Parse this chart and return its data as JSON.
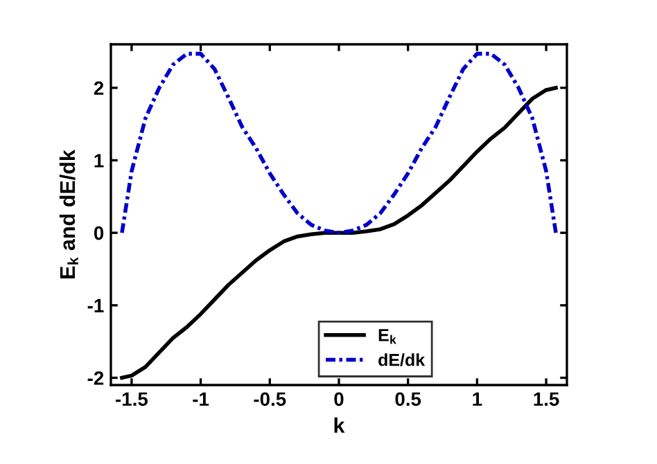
{
  "chart_data": {
    "type": "line",
    "xlabel": "k",
    "ylabel": "E$_{k}$ and dE/dk",
    "xlim": [
      -1.65,
      1.65
    ],
    "ylim": [
      -2.1,
      2.6
    ],
    "xticks": [
      -1.5,
      -1,
      -0.5,
      0,
      0.5,
      1,
      1.5
    ],
    "yticks": [
      -2,
      -1,
      0,
      1,
      2
    ],
    "grid": false,
    "legend": "bottom",
    "marker": "none",
    "x": [
      -1.57,
      -1.5,
      -1.4,
      -1.3,
      -1.2,
      -1.1,
      -1.0,
      -0.9,
      -0.8,
      -0.7,
      -0.6,
      -0.5,
      -0.4,
      -0.3,
      -0.2,
      -0.1,
      0,
      0.1,
      0.2,
      0.3,
      0.4,
      0.5,
      0.6,
      0.7,
      0.8,
      0.9,
      1.0,
      1.1,
      1.2,
      1.3,
      1.4,
      1.5,
      1.57
    ],
    "series": [
      {
        "name": "E$_{k}$",
        "color": "#000000",
        "line_style": "solid",
        "values": [
          -2,
          -1.97,
          -1.85,
          -1.65,
          -1.45,
          -1.3,
          -1.12,
          -0.92,
          -0.72,
          -0.55,
          -0.38,
          -0.24,
          -0.12,
          -0.05,
          -0.02,
          0,
          0,
          0,
          0.02,
          0.05,
          0.12,
          0.24,
          0.38,
          0.55,
          0.72,
          0.92,
          1.12,
          1.3,
          1.45,
          1.65,
          1.85,
          1.97,
          2
        ]
      },
      {
        "name": "dE/dk",
        "color": "#0000cc",
        "line_style": "dashdot",
        "values": [
          0,
          0.85,
          1.58,
          2.0,
          2.32,
          2.47,
          2.47,
          2.26,
          1.87,
          1.46,
          1.17,
          0.82,
          0.53,
          0.27,
          0.11,
          0.03,
          0,
          0.03,
          0.11,
          0.27,
          0.53,
          0.82,
          1.17,
          1.46,
          1.87,
          2.26,
          2.47,
          2.47,
          2.32,
          2.0,
          1.58,
          0.85,
          0
        ]
      }
    ]
  }
}
